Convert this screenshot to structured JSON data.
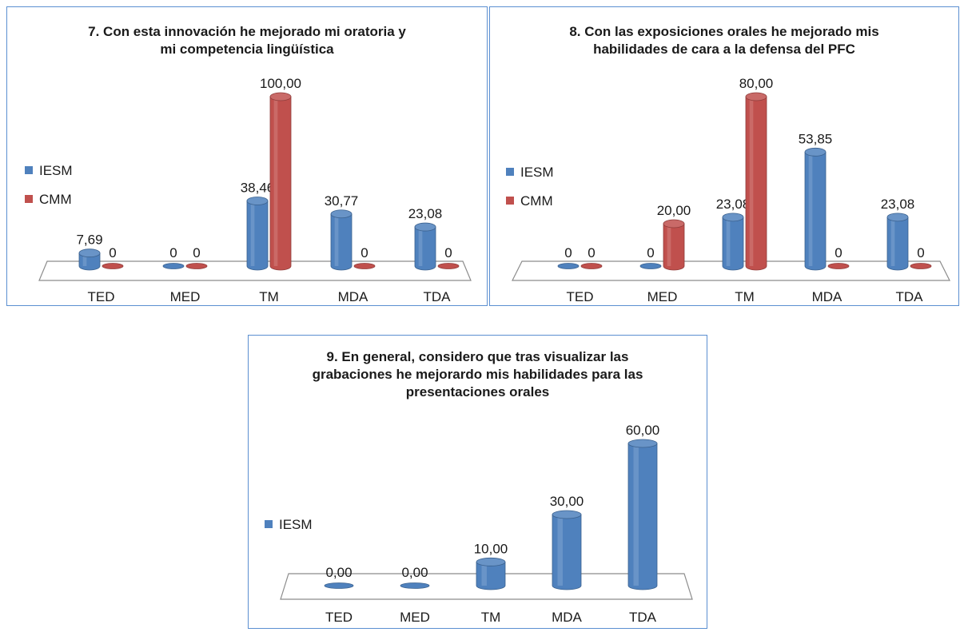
{
  "colors": {
    "series_IESM": "#4f81bd",
    "series_CMM": "#c0504d"
  },
  "chart_data": [
    {
      "type": "bar",
      "title_lines": [
        "7. Con esta innovación he mejorado mi oratoria y",
        "mi competencia lingüística"
      ],
      "categories": [
        "TED",
        "MED",
        "TM",
        "MDA",
        "TDA"
      ],
      "series": [
        {
          "name": "IESM",
          "values": [
            7.69,
            0,
            38.46,
            30.77,
            23.08
          ],
          "labels": [
            "7,69",
            "0",
            "38,46",
            "30,77",
            "23,08"
          ]
        },
        {
          "name": "CMM",
          "values": [
            0,
            0,
            100,
            0,
            0
          ],
          "labels": [
            "0",
            "0",
            "100,00",
            "0",
            "0"
          ]
        }
      ],
      "ylim": [
        0,
        100
      ],
      "legend": "left"
    },
    {
      "type": "bar",
      "title_lines": [
        "8. Con las exposiciones orales he mejorado mis",
        "habilidades de cara a la defensa del PFC"
      ],
      "categories": [
        "TED",
        "MED",
        "TM",
        "MDA",
        "TDA"
      ],
      "series": [
        {
          "name": "IESM",
          "values": [
            0,
            0,
            23.08,
            53.85,
            23.08
          ],
          "labels": [
            "0",
            "0",
            "23,08",
            "53,85",
            "23,08"
          ]
        },
        {
          "name": "CMM",
          "values": [
            0,
            20,
            80,
            0,
            0
          ],
          "labels": [
            "0",
            "20,00",
            "80,00",
            "0",
            "0"
          ]
        }
      ],
      "ylim": [
        0,
        80
      ],
      "legend": "left"
    },
    {
      "type": "bar",
      "title_lines": [
        "9. En general, considero que tras visualizar las",
        "grabaciones he mejorardo mis habilidades para las",
        "presentaciones orales"
      ],
      "categories": [
        "TED",
        "MED",
        "TM",
        "MDA",
        "TDA"
      ],
      "series": [
        {
          "name": "IESM",
          "values": [
            0,
            0,
            10,
            30,
            60
          ],
          "labels": [
            "0,00",
            "0,00",
            "10,00",
            "30,00",
            "60,00"
          ]
        }
      ],
      "ylim": [
        0,
        60
      ],
      "legend": "left"
    }
  ]
}
